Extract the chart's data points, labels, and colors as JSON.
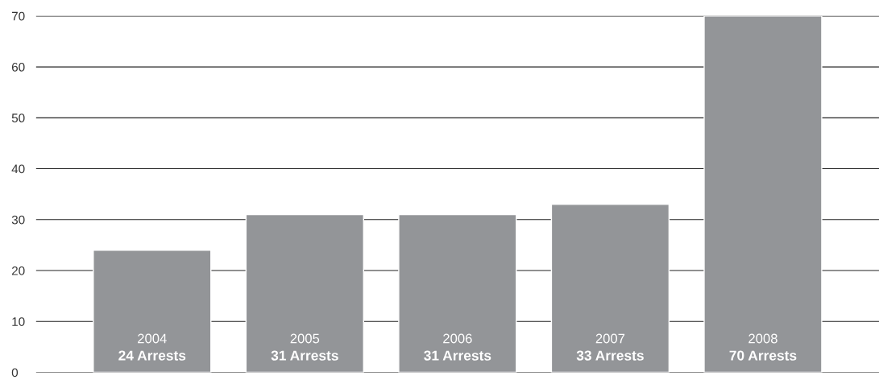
{
  "chart_data": {
    "type": "bar",
    "categories": [
      "2004",
      "2005",
      "2006",
      "2007",
      "2008"
    ],
    "values": [
      24,
      31,
      31,
      33,
      70
    ],
    "value_labels": [
      "24 Arrests",
      "31 Arrests",
      "31 Arrests",
      "33 Arrests",
      "70 Arrests"
    ],
    "color": "#939598",
    "ylim": [
      0,
      70
    ],
    "yticks": [
      0,
      10,
      20,
      30,
      40,
      50,
      60,
      70
    ],
    "grid": "y"
  }
}
